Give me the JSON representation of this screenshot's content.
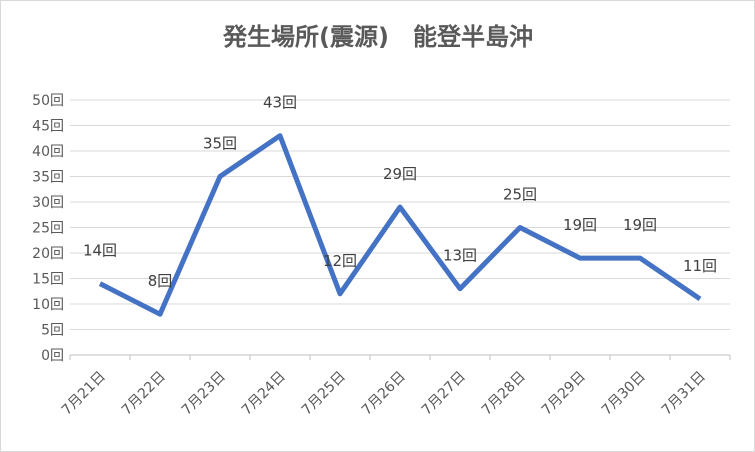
{
  "chart_data": {
    "type": "line",
    "title": "発生場所(震源)　能登半島沖",
    "categories": [
      "7月21日",
      "7月22日",
      "7月23日",
      "7月24日",
      "7月25日",
      "7月26日",
      "7月27日",
      "7月28日",
      "7月29日",
      "7月30日",
      "7月31日"
    ],
    "series": [
      {
        "color": "#4472c4",
        "values": [
          14,
          8,
          35,
          43,
          12,
          29,
          13,
          25,
          19,
          19,
          11
        ],
        "value_labels": [
          "14回",
          "8回",
          "35回",
          "43回",
          "12回",
          "29回",
          "13回",
          "25回",
          "19回",
          "19回",
          "11回"
        ]
      }
    ],
    "ylim": [
      0,
      50
    ],
    "yticks": [
      {
        "value": 0,
        "label": "0回"
      },
      {
        "value": 5,
        "label": "5回"
      },
      {
        "value": 10,
        "label": "10回"
      },
      {
        "value": 15,
        "label": "15回"
      },
      {
        "value": 20,
        "label": "20回"
      },
      {
        "value": 25,
        "label": "25回"
      },
      {
        "value": 30,
        "label": "30回"
      },
      {
        "value": 35,
        "label": "35回"
      },
      {
        "value": 40,
        "label": "40回"
      },
      {
        "value": 45,
        "label": "45回"
      },
      {
        "value": 50,
        "label": "50回"
      }
    ],
    "grid": true
  }
}
